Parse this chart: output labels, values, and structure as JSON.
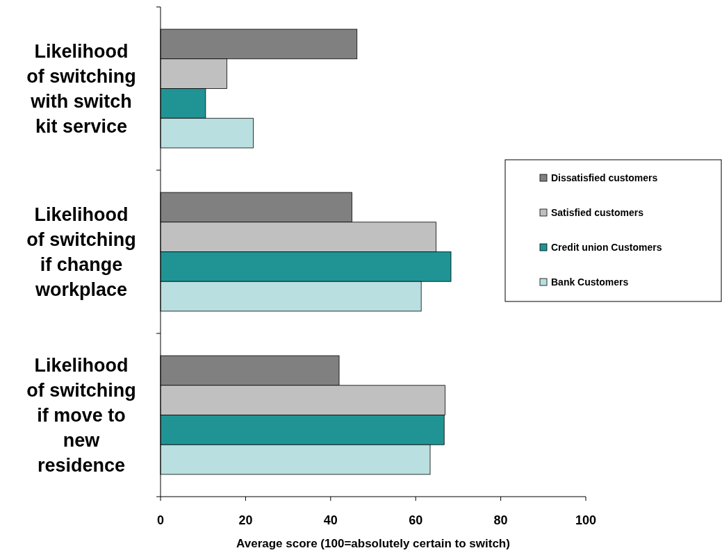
{
  "chart_data": {
    "type": "bar",
    "orientation": "horizontal",
    "categories": [
      "Likelihood of switching with switch kit service",
      "Likelihood of switching if change workplace",
      "Likelihood of switching if move to new residence"
    ],
    "series": [
      {
        "name": "Dissatisfied customers",
        "color": "#808080",
        "values": [
          46.2,
          45,
          42
        ]
      },
      {
        "name": "Satisfied customers",
        "color": "#c0c0c0",
        "values": [
          15.6,
          64.8,
          66.9
        ]
      },
      {
        "name": "Credit union Customers",
        "color": "#209494",
        "values": [
          10.6,
          68.3,
          66.7
        ]
      },
      {
        "name": "Bank Customers",
        "color": "#b9dfe0",
        "values": [
          21.8,
          61.3,
          63.4
        ]
      }
    ],
    "xlim": [
      0,
      100
    ],
    "xticks": [
      0,
      20,
      40,
      60,
      80,
      100
    ],
    "xlabel": "Average score (100=absolutely certain to switch)",
    "legend": "right",
    "grid": false
  }
}
